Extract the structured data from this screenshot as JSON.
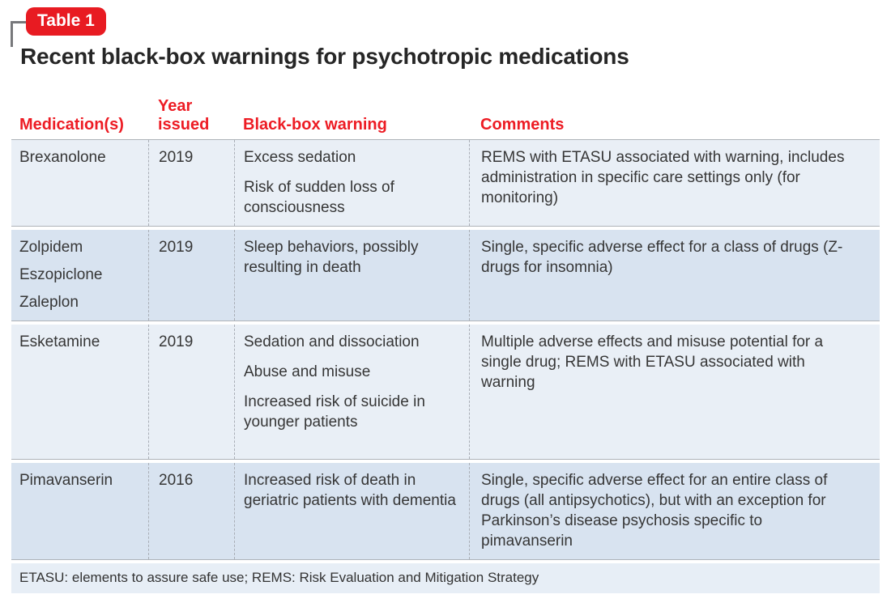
{
  "badge": {
    "label": "Table 1"
  },
  "title": "Recent black-box warnings for psychotropic medications",
  "table": {
    "columns": [
      "Medication(s)",
      "Year issued",
      "Black-box warning",
      "Comments"
    ],
    "rows": [
      {
        "medications": [
          "Brexanolone"
        ],
        "year": "2019",
        "warnings": [
          "Excess sedation",
          "Risk of sudden loss of consciousness"
        ],
        "comments": "REMS with ETASU associated with warning, includes administration in specific care settings only (for monitoring)"
      },
      {
        "medications": [
          "Zolpidem",
          "Eszopiclone",
          "Zaleplon"
        ],
        "year": "2019",
        "warnings": [
          "Sleep behaviors, possibly resulting in death"
        ],
        "comments": "Single, specific adverse effect for a class of drugs (Z-drugs for insomnia)"
      },
      {
        "medications": [
          "Esketamine"
        ],
        "year": "2019",
        "warnings": [
          "Sedation and dissociation",
          "Abuse and misuse",
          "Increased risk of suicide in younger patients"
        ],
        "comments": "Multiple adverse effects and misuse potential for a single drug; REMS with ETASU associated with warning"
      },
      {
        "medications": [
          "Pimavanserin"
        ],
        "year": "2016",
        "warnings": [
          "Increased risk of death in geriatric patients with dementia"
        ],
        "comments": "Single, specific adverse effect for an entire class of drugs (all antipsychotics), but with an exception for Parkinson’s disease psychosis specific to pimavanserin"
      }
    ],
    "footnote": "ETASU: elements to assure safe use; REMS: Risk Evaluation and Mitigation Strategy"
  },
  "colors": {
    "accent_red": "#ed1c24",
    "badge_red": "#e81b22",
    "row_light": "#e9eff6",
    "row_dark": "#d8e3f0",
    "footnote_bg": "#e7eef6"
  }
}
